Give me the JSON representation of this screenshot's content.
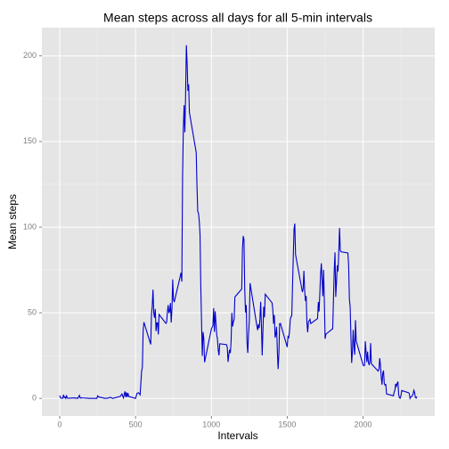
{
  "chart_data": {
    "type": "line",
    "title": "Mean steps across all days for all 5-min intervals",
    "xlabel": "Intervals",
    "ylabel": "Mean steps",
    "xlim": [
      -117.75,
      2472.75
    ],
    "ylim": [
      -10.3,
      216.5
    ],
    "xticks": [
      0,
      500,
      1000,
      1500,
      2000
    ],
    "yticks": [
      0,
      50,
      100,
      150,
      200
    ],
    "xminor": [
      250,
      750,
      1250,
      1750,
      2250
    ],
    "yminor": [
      25,
      75,
      125,
      175
    ],
    "grid": true,
    "series": [
      {
        "color": "#0000cc",
        "x": [
          0,
          5,
          10,
          15,
          20,
          25,
          30,
          35,
          40,
          45,
          50,
          55,
          100,
          105,
          110,
          115,
          120,
          125,
          130,
          135,
          140,
          145,
          150,
          200,
          230,
          245,
          250,
          255,
          300,
          320,
          330,
          340,
          345,
          350,
          400,
          410,
          420,
          430,
          435,
          440,
          445,
          450,
          455,
          500,
          510,
          520,
          530,
          540,
          545,
          550,
          555,
          600,
          605,
          610,
          615,
          620,
          625,
          630,
          635,
          640,
          645,
          650,
          655,
          700,
          705,
          710,
          715,
          720,
          725,
          730,
          735,
          740,
          745,
          750,
          755,
          800,
          805,
          810,
          815,
          820,
          825,
          830,
          835,
          840,
          845,
          850,
          855,
          900,
          905,
          910,
          915,
          920,
          925,
          930,
          935,
          940,
          945,
          950,
          955,
          1000,
          1010,
          1015,
          1020,
          1025,
          1030,
          1035,
          1040,
          1045,
          1050,
          1055,
          1100,
          1105,
          1110,
          1115,
          1120,
          1125,
          1130,
          1135,
          1140,
          1145,
          1150,
          1155,
          1200,
          1205,
          1210,
          1215,
          1220,
          1225,
          1230,
          1235,
          1240,
          1245,
          1250,
          1255,
          1300,
          1305,
          1310,
          1315,
          1320,
          1325,
          1330,
          1335,
          1340,
          1345,
          1350,
          1355,
          1400,
          1405,
          1410,
          1415,
          1420,
          1425,
          1430,
          1435,
          1440,
          1445,
          1450,
          1455,
          1500,
          1505,
          1510,
          1515,
          1520,
          1525,
          1530,
          1535,
          1540,
          1545,
          1550,
          1555,
          1600,
          1605,
          1610,
          1615,
          1620,
          1625,
          1630,
          1635,
          1640,
          1645,
          1650,
          1655,
          1700,
          1705,
          1710,
          1715,
          1720,
          1725,
          1730,
          1735,
          1740,
          1745,
          1750,
          1755,
          1800,
          1805,
          1810,
          1815,
          1820,
          1825,
          1830,
          1835,
          1840,
          1845,
          1850,
          1855,
          1900,
          1905,
          1910,
          1915,
          1920,
          1925,
          1930,
          1935,
          1940,
          1945,
          1950,
          1955,
          2000,
          2005,
          2010,
          2015,
          2020,
          2025,
          2030,
          2035,
          2040,
          2045,
          2050,
          2055,
          2100,
          2105,
          2110,
          2115,
          2120,
          2125,
          2130,
          2135,
          2140,
          2145,
          2150,
          2155,
          2200,
          2205,
          2210,
          2215,
          2220,
          2225,
          2230,
          2235,
          2240,
          2245,
          2250,
          2255,
          2300,
          2305,
          2310,
          2315,
          2320,
          2325,
          2330,
          2335,
          2340,
          2345,
          2350,
          2355
        ],
        "values": [
          1.7,
          0.3,
          0.1,
          0.2,
          0.1,
          2.1,
          0.5,
          0.9,
          0,
          1.5,
          0.3,
          0.1,
          0.3,
          0,
          0.1,
          0.3,
          0,
          1.1,
          1.8,
          0.2,
          0.2,
          0.4,
          0.3,
          0,
          0,
          0,
          1.5,
          0.9,
          0,
          0.2,
          0.6,
          0.5,
          0.1,
          0,
          1.2,
          2.6,
          0.3,
          4.1,
          0.7,
          3.5,
          0.8,
          3.1,
          1.1,
          0,
          3,
          3.3,
          2.1,
          16,
          18.3,
          39.5,
          44.5,
          31.5,
          49.3,
          53.8,
          63.5,
          50,
          47.1,
          52.2,
          39.3,
          44,
          44.2,
          37.4,
          49,
          43.8,
          44.4,
          50.5,
          54.5,
          49.9,
          51,
          55.7,
          44.3,
          52.3,
          69.5,
          57.8,
          56.2,
          73.4,
          68.2,
          129.4,
          157.5,
          171.2,
          155.4,
          177.3,
          206.2,
          195.9,
          179.6,
          183.4,
          167,
          143.5,
          124,
          109.1,
          108.1,
          103.7,
          95.97,
          66.2,
          45.2,
          24.8,
          38.8,
          34.98,
          21.1,
          40.6,
          42.4,
          52.7,
          38.9,
          50.8,
          44.3,
          37.4,
          34.7,
          28.3,
          25.1,
          31.9,
          31.4,
          29.7,
          21.3,
          25.5,
          28.4,
          26.5,
          33.4,
          49.98,
          42,
          44.6,
          46,
          59.2,
          63.9,
          87.7,
          94.8,
          92.8,
          63.4,
          50.2,
          54.5,
          32.4,
          26.5,
          37.7,
          45.1,
          67.3,
          42.3,
          39.9,
          43.3,
          40.98,
          46.2,
          56.4,
          42.8,
          25.1,
          39.96,
          53.5,
          47.3,
          60.8,
          55.8,
          51.96,
          43.6,
          48.7,
          35.5,
          37.5,
          41.8,
          27.5,
          17.1,
          26.1,
          43.6,
          43.8,
          30,
          36.1,
          35.5,
          38.8,
          45.96,
          47.8,
          48.1,
          65.3,
          82.9,
          98.7,
          102.1,
          83.96,
          62.1,
          64.1,
          74.5,
          63.2,
          56.9,
          59.8,
          43.9,
          38.6,
          44.7,
          45.5,
          46.2,
          43.7,
          46.6,
          56.3,
          50.7,
          61.2,
          72.7,
          78.9,
          68.9,
          59.7,
          75.1,
          56.5,
          34.8,
          37.5,
          40.7,
          58,
          74.7,
          85.3,
          59.3,
          67.8,
          77.7,
          74.2,
          85.3,
          99.5,
          86.6,
          85.6,
          84.9,
          77.8,
          58,
          53.4,
          36.3,
          20.7,
          27.4,
          40,
          30.2,
          25.5,
          45.7,
          33.5,
          19.6,
          19,
          19.3,
          33.3,
          26.8,
          21.2,
          27.3,
          21.3,
          19.5,
          21.3,
          32.3,
          20.2,
          15.9,
          17.2,
          23.5,
          19.2,
          12.5,
          8,
          14.7,
          16.3,
          8.7,
          7.8,
          8.1,
          2.6,
          1.5,
          3.7,
          4.8,
          8.5,
          7.1,
          8.7,
          9.8,
          2.2,
          0.3,
          0.1,
          1.6,
          4.6,
          3.3,
          2.8,
          0,
          0.8,
          0.96,
          1.6,
          2.6,
          4.7,
          3.3,
          0.6,
          0.2,
          1.1
        ]
      }
    ]
  }
}
